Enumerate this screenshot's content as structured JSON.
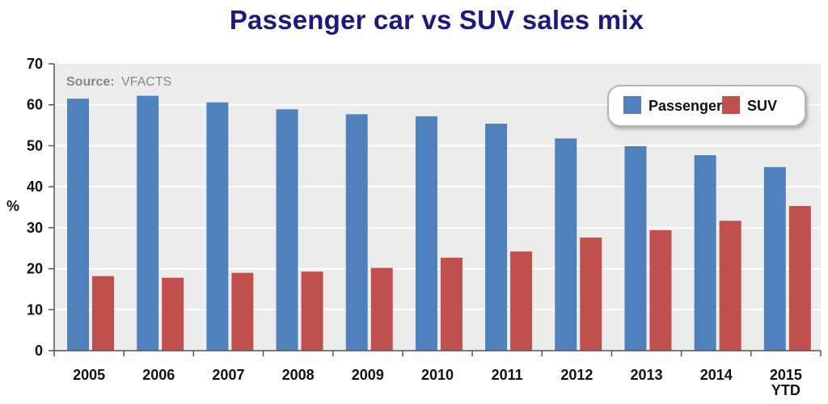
{
  "chart_data": {
    "type": "bar",
    "title": "Passenger car vs SUV sales mix",
    "ylabel": "%",
    "xlabel": "",
    "source_label": "Source:",
    "source_value": "VFACTS",
    "categories": [
      "2005",
      "2006",
      "2007",
      "2008",
      "2009",
      "2010",
      "2011",
      "2012",
      "2013",
      "2014",
      "2015\nYTD"
    ],
    "series": [
      {
        "name": "Passenger",
        "color": "#4f81bd",
        "values": [
          61.5,
          62.2,
          60.6,
          58.9,
          57.7,
          57.2,
          55.4,
          51.8,
          49.9,
          47.7,
          44.8
        ]
      },
      {
        "name": "SUV",
        "color": "#c0504d",
        "values": [
          18.2,
          17.8,
          19.0,
          19.3,
          20.2,
          22.7,
          24.2,
          27.6,
          29.4,
          31.7,
          35.3
        ]
      }
    ],
    "ylim": [
      0,
      70
    ],
    "yticks": [
      "0",
      "10",
      "20",
      "30",
      "40",
      "50",
      "60",
      "70"
    ],
    "grid": true,
    "legend_position": "top-right"
  }
}
